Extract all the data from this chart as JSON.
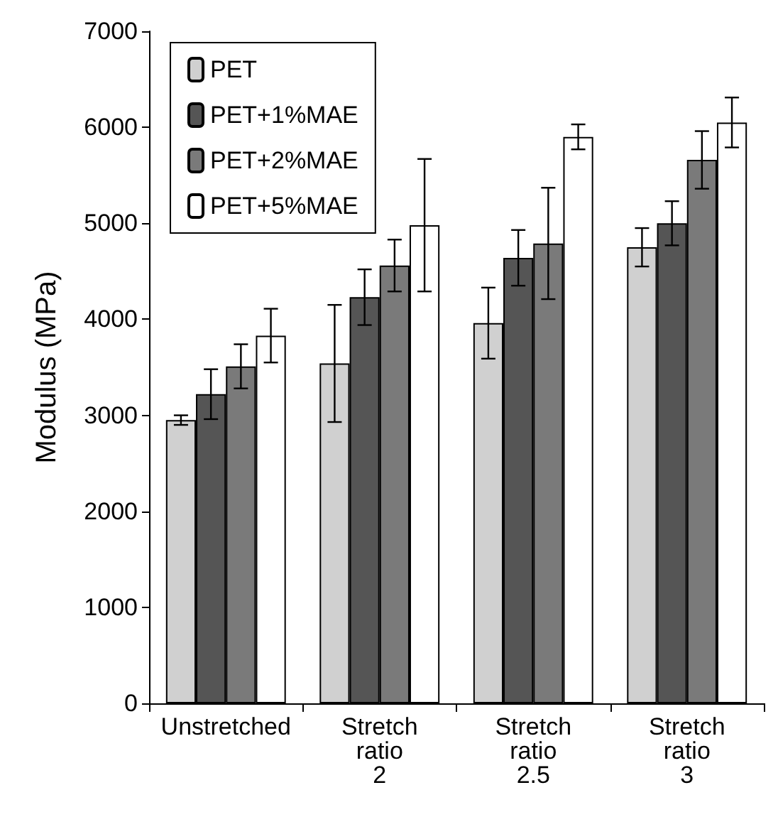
{
  "chart_data": {
    "type": "bar",
    "ylabel": "Modulus (MPa)",
    "categories": [
      "Unstretched",
      "Stretch ratio 2",
      "Stretch ratio 2.5",
      "Stretch ratio 3"
    ],
    "series": [
      {
        "name": "PET",
        "color": "#d0d0d0",
        "values": [
          2950,
          3540,
          3960,
          4750
        ],
        "errors": [
          50,
          610,
          370,
          200
        ]
      },
      {
        "name": "PET+1%MAE",
        "color": "#555555",
        "values": [
          3220,
          4230,
          4640,
          5000
        ],
        "errors": [
          260,
          290,
          290,
          230
        ]
      },
      {
        "name": "PET+2%MAE",
        "color": "#7a7a7a",
        "values": [
          3510,
          4560,
          4790,
          5660
        ],
        "errors": [
          230,
          270,
          580,
          300
        ]
      },
      {
        "name": "PET+5%MAE",
        "color": "#ffffff",
        "values": [
          3830,
          4980,
          5900,
          6050
        ],
        "errors": [
          280,
          690,
          130,
          260
        ]
      }
    ],
    "ylim": [
      0,
      7000
    ],
    "yticks": [
      0,
      1000,
      2000,
      3000,
      4000,
      5000,
      6000,
      7000
    ],
    "grid": false,
    "legend": "top left"
  }
}
